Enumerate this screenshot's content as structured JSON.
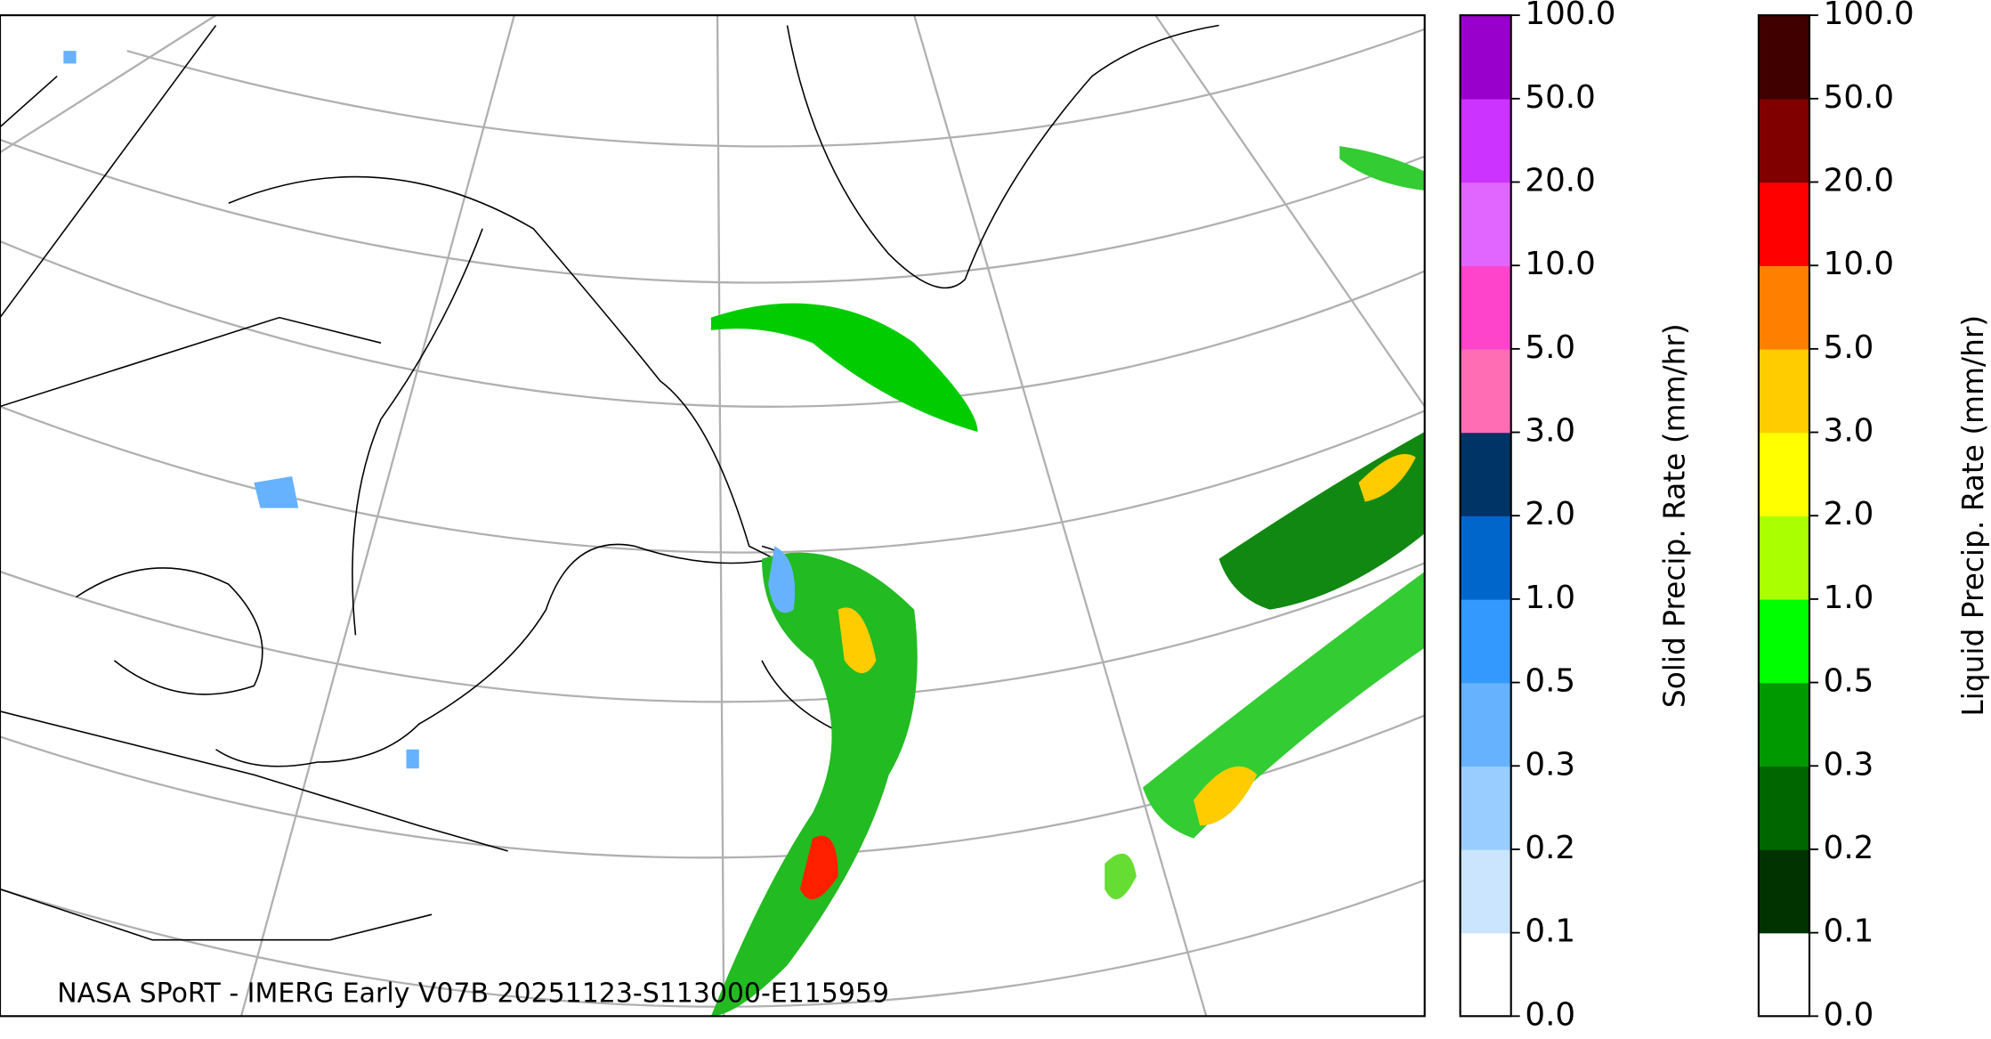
{
  "map": {
    "caption": "NASA SPoRT - IMERG Early V07B 20251123-S113000-E115959",
    "colorbars": [
      {
        "label": "Solid Precip. Rate (mm/hr)",
        "ticks": [
          {
            "value": 0,
            "label": "0.0"
          },
          {
            "value": 0.1,
            "label": "0.1"
          },
          {
            "value": 0.2,
            "label": "0.2"
          },
          {
            "value": 0.3,
            "label": "0.3"
          },
          {
            "value": 0.5,
            "label": "0.5"
          },
          {
            "value": 1,
            "label": "1.0"
          },
          {
            "value": 2,
            "label": "2.0"
          },
          {
            "value": 3,
            "label": "3.0"
          },
          {
            "value": 5,
            "label": "5.0"
          },
          {
            "value": 10,
            "label": "10.0"
          },
          {
            "value": 20,
            "label": "20.0"
          },
          {
            "value": 50,
            "label": "50.0"
          },
          {
            "value": 100,
            "label": "100.0"
          }
        ],
        "colors": [
          "#ffffff",
          "#cce5ff",
          "#99ccff",
          "#66b2ff",
          "#3399ff",
          "#0066cc",
          "#003366",
          "#ff6eb4",
          "#ff44cc",
          "#e066ff",
          "#cc33ff",
          "#9900cc"
        ]
      },
      {
        "label": "Liquid Precip. Rate (mm/hr)",
        "ticks": [
          {
            "value": 0,
            "label": "0.0"
          },
          {
            "value": 0.1,
            "label": "0.1"
          },
          {
            "value": 0.2,
            "label": "0.2"
          },
          {
            "value": 0.3,
            "label": "0.3"
          },
          {
            "value": 0.5,
            "label": "0.5"
          },
          {
            "value": 1,
            "label": "1.0"
          },
          {
            "value": 2,
            "label": "2.0"
          },
          {
            "value": 3,
            "label": "3.0"
          },
          {
            "value": 5,
            "label": "5.0"
          },
          {
            "value": 10,
            "label": "10.0"
          },
          {
            "value": 20,
            "label": "20.0"
          },
          {
            "value": 50,
            "label": "50.0"
          },
          {
            "value": 100,
            "label": "100.0"
          }
        ],
        "colors": [
          "#ffffff",
          "#003300",
          "#006600",
          "#009900",
          "#00ff00",
          "#aaff00",
          "#ffff00",
          "#ffcc00",
          "#ff8000",
          "#ff0000",
          "#800000",
          "#400000"
        ]
      }
    ]
  }
}
